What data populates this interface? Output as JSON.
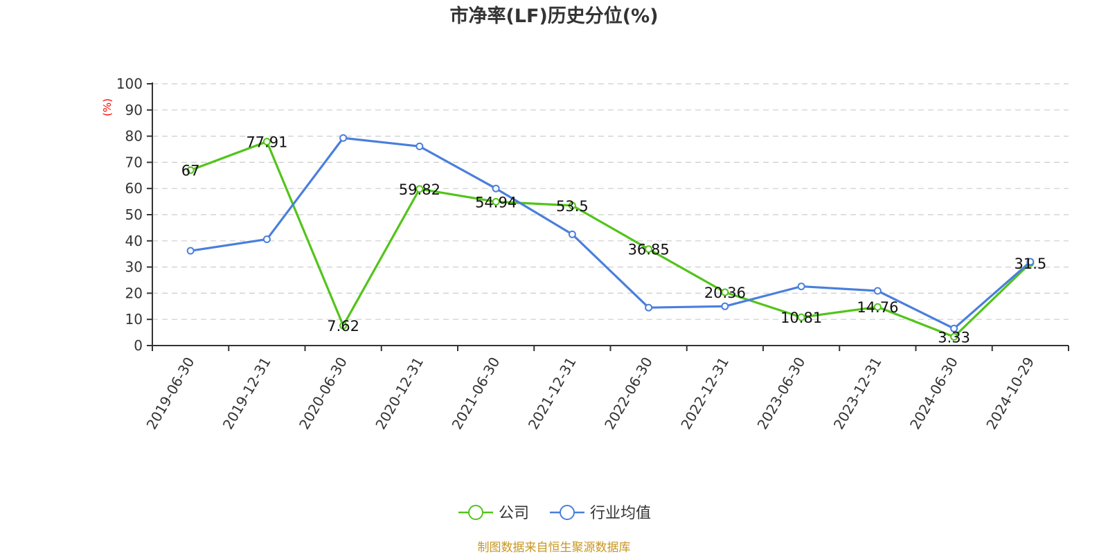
{
  "chart_data": {
    "type": "line",
    "title": "市净率(LF)历史分位(%)",
    "ylabel": "(%)",
    "ylim": [
      0,
      100
    ],
    "yticks": [
      0,
      10,
      20,
      30,
      40,
      50,
      60,
      70,
      80,
      90,
      100
    ],
    "categories": [
      "2019-06-30",
      "2019-12-31",
      "2020-06-30",
      "2020-12-31",
      "2021-06-30",
      "2021-12-31",
      "2022-06-30",
      "2022-12-31",
      "2023-06-30",
      "2023-12-31",
      "2024-06-30",
      "2024-10-29"
    ],
    "series": [
      {
        "name": "公司",
        "color": "#52c41a",
        "values": [
          67,
          77.91,
          7.62,
          59.82,
          54.94,
          53.5,
          36.85,
          20.36,
          10.81,
          14.76,
          3.33,
          31.5
        ],
        "labels": [
          "67",
          "77.91",
          "7.62",
          "59.82",
          "54.94",
          "53.5",
          "36.85",
          "20.36",
          "10.81",
          "14.76",
          "3.33",
          "31.5"
        ]
      },
      {
        "name": "行业均值",
        "color": "#4a7fdc",
        "values": [
          36.2,
          40.6,
          79.3,
          76.1,
          60.0,
          42.5,
          14.5,
          15.0,
          22.6,
          20.9,
          6.5,
          32.0
        ]
      }
    ],
    "grid": true,
    "legend_position": "bottom-center"
  },
  "footer": {
    "source": "制图数据来自恒生聚源数据库"
  }
}
